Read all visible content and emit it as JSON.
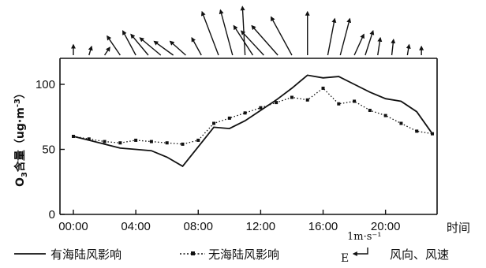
{
  "chart_data": {
    "type": "line",
    "title": "",
    "xlabel": "时间",
    "ylabel": "O3含量（ug·m⁻³）",
    "ylabel_parts": {
      "o": "O",
      "sub": "3",
      "rest": "含量（ug·m",
      "sup": "-3",
      "close": "）"
    },
    "ylim": [
      0,
      120
    ],
    "xlim": [
      0,
      23
    ],
    "x_ticks": [
      {
        "x": 0,
        "label": "00:00"
      },
      {
        "x": 4,
        "label": "04:00"
      },
      {
        "x": 8,
        "label": "08:00"
      },
      {
        "x": 12,
        "label": "12:00"
      },
      {
        "x": 16,
        "label": "16:00"
      },
      {
        "x": 20,
        "label": "20:00"
      }
    ],
    "y_ticks": [
      {
        "y": 0,
        "label": "0"
      },
      {
        "y": 50,
        "label": "50"
      },
      {
        "y": 100,
        "label": "100"
      }
    ],
    "grid": false,
    "legend_position": "bottom",
    "series": [
      {
        "name": "有海陆风影响",
        "style": "solid",
        "x": [
          0,
          1,
          2,
          3,
          4,
          5,
          6,
          7,
          8,
          9,
          10,
          11,
          12,
          13,
          14,
          15,
          16,
          17,
          18,
          19,
          20,
          21,
          22,
          23
        ],
        "y": [
          60,
          57,
          54,
          51,
          50,
          49,
          44,
          37,
          52,
          67,
          66,
          72,
          80,
          88,
          97,
          107,
          105,
          106,
          100,
          94,
          89,
          87,
          79,
          62
        ]
      },
      {
        "name": "无海陆风影响",
        "style": "dotted",
        "x": [
          0,
          1,
          2,
          3,
          4,
          5,
          6,
          7,
          8,
          9,
          10,
          11,
          12,
          13,
          14,
          15,
          16,
          17,
          18,
          19,
          20,
          21,
          22,
          23
        ],
        "y": [
          60,
          58,
          56,
          55,
          57,
          56,
          55,
          54,
          57,
          70,
          74,
          78,
          82,
          86,
          90,
          88,
          97,
          85,
          87,
          80,
          76,
          70,
          64,
          62
        ]
      }
    ],
    "wind": {
      "legend_label": "风向、风速",
      "scale_label": "1m·s⁻¹",
      "direction_label": "E",
      "vectors": [
        {
          "x": 0,
          "dx": 0,
          "dy": -0.6
        },
        {
          "x": 1,
          "dx": 0.15,
          "dy": -0.5
        },
        {
          "x": 2,
          "dx": 0.3,
          "dy": -0.45
        },
        {
          "x": 3,
          "dx": -0.75,
          "dy": -1.1
        },
        {
          "x": 4,
          "dx": -0.75,
          "dy": -1.4
        },
        {
          "x": 4.8,
          "dx": -1.0,
          "dy": -1.2
        },
        {
          "x": 5.6,
          "dx": -1.2,
          "dy": -1.0
        },
        {
          "x": 6.4,
          "dx": -1.1,
          "dy": -0.8
        },
        {
          "x": 7.2,
          "dx": -0.9,
          "dy": -0.8
        },
        {
          "x": 8.2,
          "dx": -0.55,
          "dy": -1.0
        },
        {
          "x": 9.3,
          "dx": -0.95,
          "dy": -2.5
        },
        {
          "x": 10.2,
          "dx": -0.7,
          "dy": -2.6
        },
        {
          "x": 11.0,
          "dx": -0.15,
          "dy": -2.8
        },
        {
          "x": 11.5,
          "dx": -1.1,
          "dy": -1.7
        },
        {
          "x": 12.2,
          "dx": -1.3,
          "dy": -1.4
        },
        {
          "x": 13.1,
          "dx": -1.5,
          "dy": -1.7
        },
        {
          "x": 14.0,
          "dx": -1.2,
          "dy": -2.2
        },
        {
          "x": 15.0,
          "dx": 0,
          "dy": -2.5
        },
        {
          "x": 16.3,
          "dx": 0.4,
          "dy": -2.1
        },
        {
          "x": 17.1,
          "dx": 0.55,
          "dy": -2.1
        },
        {
          "x": 18.0,
          "dx": 0.55,
          "dy": -1.2
        },
        {
          "x": 18.7,
          "dx": 0.45,
          "dy": -1.4
        },
        {
          "x": 19.5,
          "dx": 0.15,
          "dy": -1.0
        },
        {
          "x": 20.4,
          "dx": 0.1,
          "dy": -0.9
        },
        {
          "x": 21.4,
          "dx": 0.1,
          "dy": -0.6
        },
        {
          "x": 22.3,
          "dx": 0,
          "dy": -0.5
        }
      ]
    }
  }
}
